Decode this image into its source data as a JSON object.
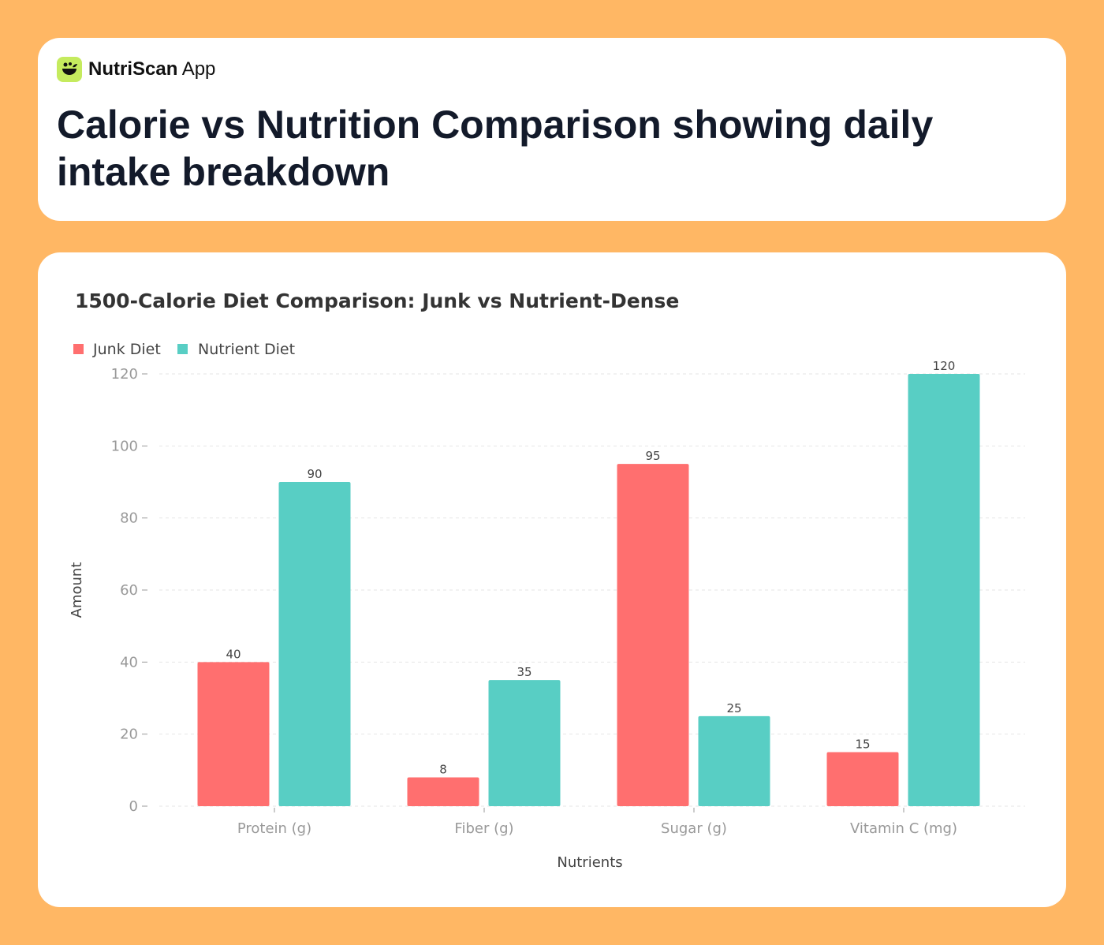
{
  "brand": {
    "name_bold": "NutriScan",
    "name_light": "App",
    "icon": "salad-bowl-icon",
    "icon_color": "#C5EB5E"
  },
  "header": {
    "title": "Calorie vs Nutrition Comparison showing daily intake breakdown"
  },
  "chart_data": {
    "type": "bar",
    "title": "1500-Calorie Diet Comparison: Junk vs Nutrient-Dense",
    "xlabel": "Nutrients",
    "ylabel": "Amount",
    "categories": [
      "Protein (g)",
      "Fiber (g)",
      "Sugar (g)",
      "Vitamin C (mg)"
    ],
    "series": [
      {
        "name": "Junk Diet",
        "color": "#FF6F6F",
        "values": [
          40,
          8,
          95,
          15
        ]
      },
      {
        "name": "Nutrient Diet",
        "color": "#58CEC4",
        "values": [
          90,
          35,
          25,
          120
        ]
      }
    ],
    "ylim": [
      0,
      120
    ],
    "yticks": [
      0,
      20,
      40,
      60,
      80,
      100,
      120
    ],
    "grid": true,
    "legend": "top-left",
    "data_labels": true
  }
}
